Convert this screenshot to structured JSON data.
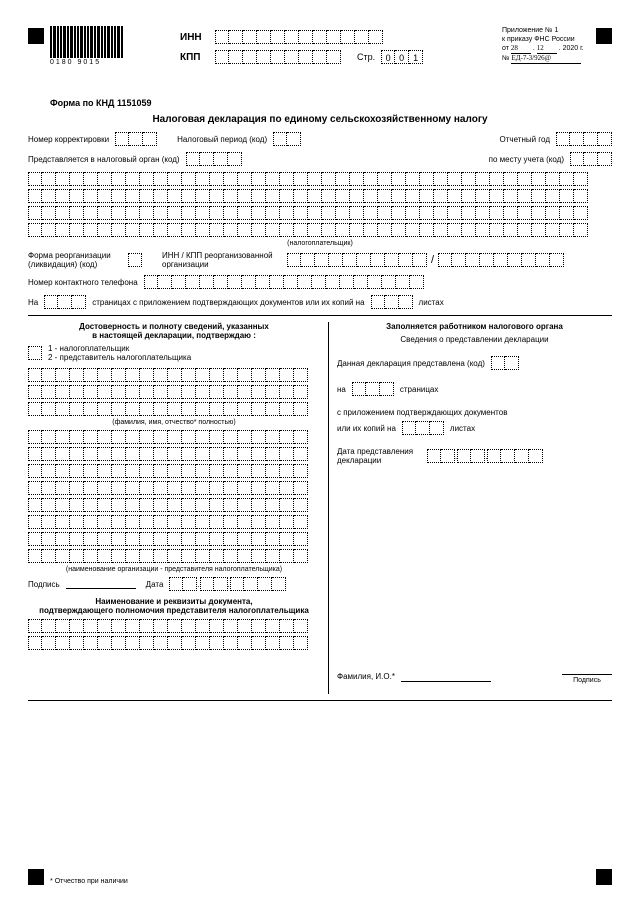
{
  "barcode_text": "0180  9015",
  "inn_label": "ИНН",
  "kpp_label": "КПП",
  "str_label": "Стр.",
  "page_digits": [
    "0",
    "0",
    "1"
  ],
  "appendix": {
    "l1": "Приложение № 1",
    "l2": "к приказу ФНС России",
    "l3a": "от ",
    "l3_hw1": "28",
    "l3_hw2": "12",
    "l3_yr": "2020 г.",
    "l4a": "№ ",
    "l4_hw": "ЕД-7-3/926@"
  },
  "knd": "Форма по КНД 1151059",
  "title": "Налоговая декларация по единому сельскохозяйственному налогу",
  "lbls": {
    "corr": "Номер корректировки",
    "period": "Налоговый период (код)",
    "year": "Отчетный год",
    "organ": "Представляется в налоговый орган (код)",
    "place": "по месту учета (код)",
    "taxpayer": "(налогоплательщик)",
    "reorg": "Форма реорганизации",
    "liquid": "(ликвидация) (код)",
    "reorg_inn": "ИНН / КПП реорганизованной",
    "reorg_org": "организации",
    "phone": "Номер контактного телефона",
    "pages1": "На",
    "pages2": "страницах с приложением подтверждающих документов или их копий на",
    "pages3": "листах",
    "conf_title": "Достоверность и полноту сведений, указанных",
    "conf_title2": "в настоящей декларации, подтверждаю :",
    "opt1": "1 - налогоплательщик",
    "opt2": "2 - представитель налогоплательщика",
    "fio": "(фамилия, имя, отчество",
    "fio2": " полностью)",
    "orgname": "(наименование организации - представителя налогоплательщика)",
    "sign": "Подпись",
    "date": "Дата",
    "doc_title": "Наименование и реквизиты документа,",
    "doc_title2": "подтверждающего полномочия представителя налогоплательщика",
    "right_title": "Заполняется работником налогового органа",
    "right_sub": "Сведения о представлении декларации",
    "presented": "Данная декларация представлена  (код)",
    "on_pages": "на",
    "on_pages2": "страницах",
    "with_app": "с приложением подтверждающих документов",
    "copies": "или их копий на",
    "sheets": "листах",
    "date_pres": "Дата представления",
    "date_pres2": "декларации",
    "fio_io": "Фамилия, И.О.",
    "sig": "Подпись",
    "star": "*",
    "footnote": "Отчество при наличии"
  }
}
